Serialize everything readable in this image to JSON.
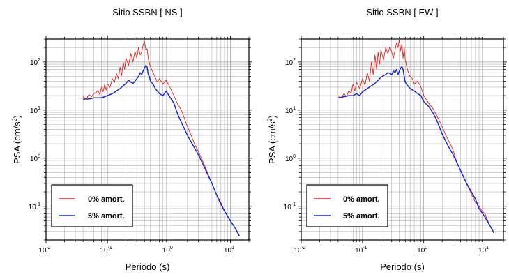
{
  "chart_data": [
    {
      "type": "line",
      "title": "Sitio SSBN [ NS ]",
      "xlabel": "Periodo (s)",
      "ylabel_main": "PSA (cm/s",
      "ylabel_sup": "2",
      "ylabel_close": ")",
      "xscale": "log",
      "yscale": "log",
      "xlim": [
        0.01,
        20
      ],
      "ylim": [
        0.02,
        300
      ],
      "grid": true,
      "legend_position": "bottom-left",
      "x_ticks": [
        {
          "base": "10",
          "exp": "-2"
        },
        {
          "base": "10",
          "exp": "-1"
        },
        {
          "base": "10",
          "exp": "0"
        },
        {
          "base": "10",
          "exp": "1"
        }
      ],
      "y_ticks": [
        {
          "base": "10",
          "exp": "-1"
        },
        {
          "base": "10",
          "exp": "0"
        },
        {
          "base": "10",
          "exp": "1"
        },
        {
          "base": "10",
          "exp": "2"
        }
      ],
      "series": [
        {
          "name": "0% amort.",
          "color": "#e8231c",
          "x": [
            0.04,
            0.045,
            0.05,
            0.055,
            0.06,
            0.065,
            0.07,
            0.075,
            0.08,
            0.085,
            0.09,
            0.095,
            0.1,
            0.11,
            0.12,
            0.13,
            0.14,
            0.15,
            0.16,
            0.17,
            0.18,
            0.19,
            0.2,
            0.22,
            0.24,
            0.26,
            0.28,
            0.3,
            0.32,
            0.34,
            0.36,
            0.38,
            0.4,
            0.42,
            0.44,
            0.46,
            0.48,
            0.5,
            0.55,
            0.6,
            0.65,
            0.7,
            0.8,
            0.9,
            1.0,
            1.2,
            1.4,
            1.6,
            1.8,
            2.0,
            2.3,
            2.6,
            3.0,
            3.5,
            4.0,
            5.0,
            6.0,
            7.0,
            8.0,
            10.0,
            12.0,
            14.0
          ],
          "y": [
            19,
            17,
            21,
            19,
            22,
            23,
            26,
            21,
            30,
            24,
            34,
            26,
            35,
            30,
            45,
            38,
            58,
            45,
            78,
            52,
            100,
            70,
            120,
            85,
            150,
            100,
            170,
            120,
            200,
            140,
            160,
            230,
            270,
            180,
            190,
            120,
            95,
            80,
            60,
            48,
            38,
            45,
            35,
            42,
            33,
            20,
            13,
            10,
            6.5,
            4.5,
            3.0,
            2.0,
            1.4,
            0.9,
            0.6,
            0.3,
            0.17,
            0.12,
            0.08,
            0.05,
            0.035,
            0.025
          ]
        },
        {
          "name": "5% amort.",
          "color": "#1a2ad6",
          "x": [
            0.04,
            0.05,
            0.06,
            0.07,
            0.08,
            0.09,
            0.1,
            0.12,
            0.14,
            0.16,
            0.18,
            0.2,
            0.22,
            0.24,
            0.26,
            0.28,
            0.3,
            0.32,
            0.34,
            0.36,
            0.38,
            0.4,
            0.42,
            0.44,
            0.46,
            0.48,
            0.5,
            0.55,
            0.6,
            0.7,
            0.8,
            0.9,
            1.0,
            1.2,
            1.4,
            1.6,
            1.8,
            2.0,
            2.5,
            3.0,
            3.5,
            4.0,
            5.0,
            6.0,
            7.0,
            8.0,
            10.0,
            12.0,
            14.0
          ],
          "y": [
            17,
            17,
            18,
            18,
            18,
            19,
            20,
            22,
            25,
            28,
            32,
            36,
            42,
            38,
            36,
            40,
            45,
            50,
            60,
            55,
            65,
            75,
            85,
            80,
            55,
            50,
            40,
            35,
            28,
            22,
            20,
            25,
            20,
            14,
            8,
            5.5,
            4.0,
            3.0,
            1.8,
            1.2,
            0.8,
            0.55,
            0.3,
            0.17,
            0.11,
            0.08,
            0.05,
            0.035,
            0.024
          ]
        }
      ]
    },
    {
      "type": "line",
      "title": "Sitio SSBN [ EW ]",
      "xlabel": "Periodo (s)",
      "ylabel_main": "PSA (cm/s",
      "ylabel_sup": "2",
      "ylabel_close": ")",
      "xscale": "log",
      "yscale": "log",
      "xlim": [
        0.01,
        20
      ],
      "ylim": [
        0.02,
        300
      ],
      "grid": true,
      "legend_position": "bottom-left",
      "x_ticks": [
        {
          "base": "10",
          "exp": "-2"
        },
        {
          "base": "10",
          "exp": "-1"
        },
        {
          "base": "10",
          "exp": "0"
        },
        {
          "base": "10",
          "exp": "1"
        }
      ],
      "y_ticks": [
        {
          "base": "10",
          "exp": "-1"
        },
        {
          "base": "10",
          "exp": "0"
        },
        {
          "base": "10",
          "exp": "1"
        },
        {
          "base": "10",
          "exp": "2"
        }
      ],
      "series": [
        {
          "name": "0% amort.",
          "color": "#e8231c",
          "x": [
            0.04,
            0.045,
            0.05,
            0.055,
            0.06,
            0.065,
            0.07,
            0.075,
            0.08,
            0.09,
            0.1,
            0.11,
            0.12,
            0.13,
            0.14,
            0.15,
            0.16,
            0.17,
            0.18,
            0.19,
            0.2,
            0.22,
            0.24,
            0.26,
            0.28,
            0.3,
            0.32,
            0.34,
            0.36,
            0.38,
            0.4,
            0.42,
            0.44,
            0.46,
            0.48,
            0.5,
            0.55,
            0.6,
            0.65,
            0.7,
            0.8,
            0.9,
            1.0,
            1.2,
            1.4,
            1.6,
            1.8,
            2.0,
            2.3,
            2.6,
            3.0,
            3.5,
            4.0,
            5.0,
            6.0,
            7.0,
            8.0,
            9.0,
            10.0,
            12.0,
            14.0
          ],
          "y": [
            20,
            18,
            22,
            19,
            26,
            22,
            35,
            25,
            38,
            28,
            45,
            33,
            60,
            40,
            100,
            55,
            140,
            70,
            160,
            90,
            180,
            110,
            200,
            150,
            210,
            160,
            120,
            180,
            250,
            200,
            300,
            170,
            240,
            120,
            200,
            110,
            65,
            50,
            45,
            35,
            40,
            30,
            20,
            14,
            11,
            8,
            6,
            4.5,
            3.0,
            2.2,
            1.5,
            0.8,
            0.55,
            0.3,
            0.18,
            0.12,
            0.1,
            0.08,
            0.07,
            0.04,
            0.028
          ]
        },
        {
          "name": "5% amort.",
          "color": "#1a2ad6",
          "x": [
            0.04,
            0.05,
            0.06,
            0.07,
            0.08,
            0.09,
            0.1,
            0.12,
            0.14,
            0.16,
            0.18,
            0.2,
            0.22,
            0.24,
            0.26,
            0.28,
            0.3,
            0.32,
            0.34,
            0.36,
            0.38,
            0.4,
            0.42,
            0.44,
            0.46,
            0.48,
            0.5,
            0.55,
            0.6,
            0.7,
            0.8,
            0.9,
            1.0,
            1.2,
            1.4,
            1.6,
            1.8,
            2.0,
            2.5,
            3.0,
            3.5,
            4.0,
            5.0,
            6.0,
            7.0,
            8.0,
            10.0,
            12.0,
            14.0
          ],
          "y": [
            18,
            19,
            20,
            20,
            22,
            20,
            24,
            28,
            32,
            36,
            42,
            48,
            52,
            55,
            60,
            58,
            55,
            65,
            60,
            70,
            55,
            65,
            75,
            80,
            70,
            50,
            38,
            32,
            28,
            25,
            22,
            20,
            15,
            12,
            9,
            6.5,
            4.5,
            3.2,
            1.8,
            1.2,
            0.8,
            0.55,
            0.3,
            0.2,
            0.14,
            0.09,
            0.06,
            0.04,
            0.028
          ]
        }
      ]
    }
  ]
}
